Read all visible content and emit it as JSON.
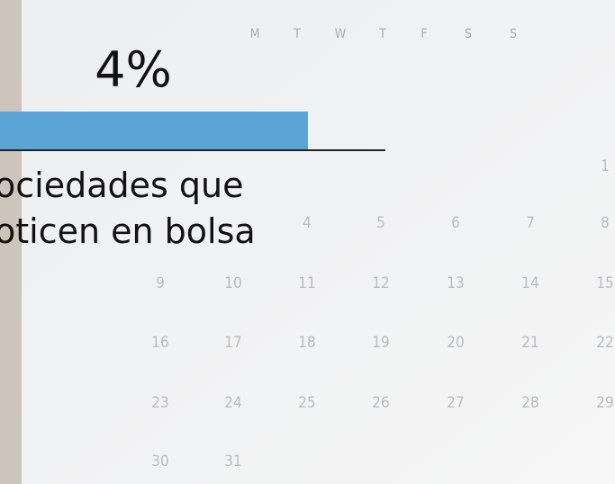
{
  "stat": {
    "value_label": "4%",
    "caption": [
      "ociedades que",
      "oticen en bolsa"
    ]
  },
  "calendar": {
    "weekdays": [
      "M",
      "T",
      "W",
      "T",
      "F",
      "S",
      "S"
    ],
    "rows": [
      [
        null,
        null,
        null,
        null,
        null,
        null,
        "1"
      ],
      [
        null,
        null,
        "4",
        "5",
        "6",
        "7",
        "8"
      ],
      [
        "9",
        "10",
        "11",
        "12",
        "13",
        "14",
        "15"
      ],
      [
        "16",
        "17",
        "18",
        "19",
        "20",
        "21",
        "22"
      ],
      [
        "23",
        "24",
        "25",
        "26",
        "27",
        "28",
        "29"
      ],
      [
        "30",
        "31",
        null,
        null,
        null,
        null,
        null
      ]
    ]
  }
}
